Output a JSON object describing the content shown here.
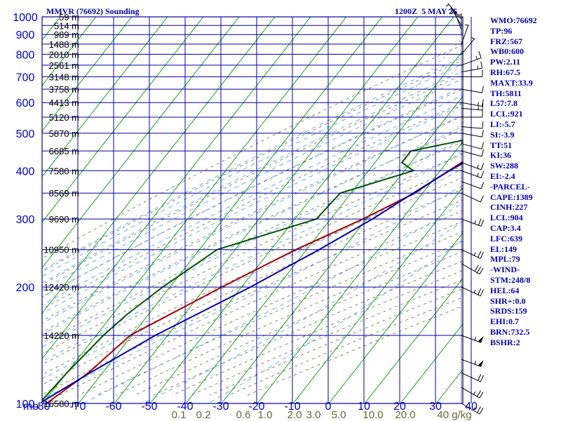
{
  "header": {
    "station": "MMVR (76692) Sounding",
    "time": "1200Z  5 MAY 25"
  },
  "indices": [
    "WMO:76692",
    "TP:96",
    "FRZ:567",
    "WB0:600",
    "PW:2.11",
    "RH:67.5",
    "MAXT:33.9",
    "TH:5811",
    "L57:7.8",
    "LCL:921",
    "LI:-5.7",
    "SI:-3.9",
    "TT:51",
    "KI:36",
    "SW:288",
    "EI:-2.4",
    "-PARCEL-",
    "CAPE:1389",
    "CINH:227",
    "LCL:904",
    "CAP:3.4",
    "LFC:639",
    "EL:149",
    "MPL:79",
    "-WIND-",
    "STM:248/8",
    "HEL:64",
    "SHR+:0.0",
    "SRDS:159",
    "EHI:0.7",
    "BRN:732.5",
    "BSHR:2"
  ],
  "chart_data": {
    "type": "line",
    "title": "MMVR (76692) Sounding",
    "subtitle": "1200Z  5 MAY 25",
    "xlabel": "",
    "ylabel": "mb",
    "pressure_unit_label": "mb",
    "mixing_ratio_unit": "g/kg",
    "y_scale": "log-pressure (inverted)",
    "ylim": [
      1000,
      100
    ],
    "xlim": [
      -80,
      40
    ],
    "grid": true,
    "x_tick_labels": [
      "-80",
      "-70",
      "-60",
      "-50",
      "-40",
      "-30",
      "-20",
      "-10",
      "0",
      "10",
      "20",
      "30",
      "40"
    ],
    "x_ticks": [
      -80,
      -70,
      -60,
      -50,
      -40,
      -30,
      -20,
      -10,
      0,
      10,
      20,
      30,
      40
    ],
    "pressure_levels": [
      100,
      200,
      300,
      400,
      500,
      600,
      700,
      800,
      900,
      1000
    ],
    "height_labels": [
      {
        "p": 100,
        "text": "16580 m"
      },
      {
        "p": 150,
        "text": "14220 m"
      },
      {
        "p": 200,
        "text": "12420 m"
      },
      {
        "p": 250,
        "text": "10950 m"
      },
      {
        "p": 300,
        "text": "9690 m"
      },
      {
        "p": 350,
        "text": "8569 m"
      },
      {
        "p": 400,
        "text": "7580 m"
      },
      {
        "p": 450,
        "text": "6685 m"
      },
      {
        "p": 500,
        "text": "5870 m"
      },
      {
        "p": 550,
        "text": "5120 m"
      },
      {
        "p": 600,
        "text": "4413 m"
      },
      {
        "p": 650,
        "text": "3758 m"
      },
      {
        "p": 700,
        "text": "3148 m"
      },
      {
        "p": 750,
        "text": "2561 m"
      },
      {
        "p": 800,
        "text": "2010 m"
      },
      {
        "p": 850,
        "text": "1488 m"
      },
      {
        "p": 900,
        "text": "989 m"
      },
      {
        "p": 950,
        "text": "514 m"
      },
      {
        "p": 1000,
        "text": "59 m"
      }
    ],
    "mixing_ratio_labels": [
      "0.1",
      "0.2",
      "0.6",
      "1.0",
      "2.0",
      "3.0",
      "5.0",
      "10.0",
      "20.0",
      "40 g/kg"
    ],
    "mixing_ratio_values": [
      0.1,
      0.2,
      0.6,
      1.0,
      2.0,
      3.0,
      5.0,
      10.0,
      20.0,
      40.0
    ],
    "series": [
      {
        "name": "",
        "color": "#aa0000",
        "p": [
          1000,
          970,
          950,
          925,
          900,
          870,
          850,
          800,
          750,
          700,
          650,
          600,
          550,
          520,
          500,
          470,
          450,
          420,
          400,
          380,
          350,
          300,
          250,
          200,
          150,
          120,
          100
        ],
        "t": [
          27,
          25.4,
          23.8,
          22,
          20,
          18.4,
          17.8,
          14.6,
          11.3,
          8,
          4,
          -0.6,
          -5.3,
          -8.6,
          -9.8,
          -12,
          -13.4,
          -15.8,
          -17.6,
          -19.4,
          -22.2,
          -31,
          -43,
          -55.5,
          -70.5,
          -74,
          -79
        ]
      },
      {
        "name": "",
        "color": "#005500",
        "p": [
          1000,
          980,
          950,
          925,
          900,
          870,
          850,
          800,
          750,
          700,
          650,
          600,
          555,
          540,
          520,
          500,
          480,
          450,
          420,
          400,
          350,
          300,
          250,
          200,
          170,
          150,
          120,
          100
        ],
        "t": [
          24,
          23,
          17.3,
          16.6,
          15,
          13.3,
          11.5,
          7.3,
          3,
          -1,
          -5.4,
          -10.4,
          -10.4,
          -9.8,
          -12.6,
          -15,
          -20,
          -32.5,
          -32.5,
          -27.5,
          -43,
          -44,
          -65,
          -72,
          -76,
          -78,
          -80,
          -81
        ]
      },
      {
        "name": "",
        "color": "#0000aa",
        "p": [
          1000,
          950,
          900,
          850,
          800,
          700,
          600,
          500,
          400,
          350,
          300,
          250,
          200,
          150,
          120,
          100
        ],
        "t": [
          31,
          26.2,
          21.5,
          17.5,
          14.5,
          8.6,
          2.4,
          -6.7,
          -17.4,
          -22.6,
          -28.3,
          -36.5,
          -47.5,
          -63.5,
          -73.5,
          -81
        ]
      }
    ],
    "wind_barbs": [
      {
        "p": 985,
        "dir": 140,
        "spd": 5
      },
      {
        "p": 950,
        "dir": 150,
        "spd": 5
      },
      {
        "p": 925,
        "dir": 160,
        "spd": 5
      },
      {
        "p": 900,
        "dir": 180,
        "spd": 5
      },
      {
        "p": 850,
        "dir": 200,
        "spd": 5
      },
      {
        "p": 800,
        "dir": 220,
        "spd": 5
      },
      {
        "p": 750,
        "dir": 250,
        "spd": 15
      },
      {
        "p": 720,
        "dir": 260,
        "spd": 15
      },
      {
        "p": 700,
        "dir": 270,
        "spd": 10
      },
      {
        "p": 650,
        "dir": 280,
        "spd": 10
      },
      {
        "p": 600,
        "dir": 280,
        "spd": 15
      },
      {
        "p": 580,
        "dir": 275,
        "spd": 15
      },
      {
        "p": 550,
        "dir": 270,
        "spd": 10
      },
      {
        "p": 520,
        "dir": 275,
        "spd": 10
      },
      {
        "p": 500,
        "dir": 280,
        "spd": 10
      },
      {
        "p": 470,
        "dir": 285,
        "spd": 10
      },
      {
        "p": 450,
        "dir": 285,
        "spd": 10
      },
      {
        "p": 420,
        "dir": 290,
        "spd": 15
      },
      {
        "p": 400,
        "dir": 290,
        "spd": 15
      },
      {
        "p": 375,
        "dir": 290,
        "spd": 10
      },
      {
        "p": 350,
        "dir": 295,
        "spd": 10
      },
      {
        "p": 300,
        "dir": 290,
        "spd": 25
      },
      {
        "p": 250,
        "dir": 295,
        "spd": 25
      },
      {
        "p": 230,
        "dir": 300,
        "spd": 30
      },
      {
        "p": 200,
        "dir": 295,
        "spd": 25
      },
      {
        "p": 150,
        "dir": 290,
        "spd": 55
      },
      {
        "p": 130,
        "dir": 290,
        "spd": 55
      },
      {
        "p": 120,
        "dir": 295,
        "spd": 20
      },
      {
        "p": 110,
        "dir": 300,
        "spd": 25
      },
      {
        "p": 100,
        "dir": 300,
        "spd": 25
      }
    ]
  }
}
